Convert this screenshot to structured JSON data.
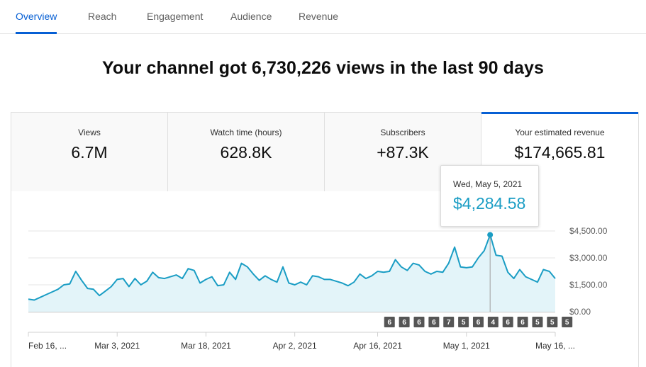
{
  "tabs": [
    {
      "label": "Overview",
      "active": true
    },
    {
      "label": "Reach"
    },
    {
      "label": "Engagement"
    },
    {
      "label": "Audience"
    },
    {
      "label": "Revenue"
    }
  ],
  "headline": "Your channel got 6,730,226 views in the last 90 days",
  "metrics": [
    {
      "label": "Views",
      "value": "6.7M"
    },
    {
      "label": "Watch time (hours)",
      "value": "628.8K"
    },
    {
      "label": "Subscribers",
      "value": "+87.3K"
    },
    {
      "label": "Your estimated revenue",
      "value": "$174,665.81",
      "active": true
    }
  ],
  "tooltip": {
    "date": "Wed, May 5, 2021",
    "value": "$4,284.58"
  },
  "colors": {
    "accent": "#065fd4",
    "line": "#1a9dc4",
    "fill": "#e3f4f9",
    "badge": "#555555"
  },
  "chart_data": {
    "type": "area",
    "series": [
      {
        "values": [
          700,
          650,
          800,
          950,
          1100,
          1250,
          1500,
          1550,
          2250,
          1750,
          1300,
          1250,
          900,
          1150,
          1400,
          1800,
          1850,
          1400,
          1850,
          1500,
          1700,
          2200,
          1900,
          1850,
          1950,
          2050,
          1850,
          2400,
          2300,
          1600,
          1800,
          1950,
          1450,
          1500,
          2200,
          1800,
          2700,
          2500,
          2100,
          1750,
          2000,
          1800,
          1650,
          2500,
          1600,
          1500,
          1650,
          1500,
          2000,
          1950,
          1800,
          1800,
          1700,
          1600,
          1450,
          1650,
          2100,
          1850,
          2000,
          2250,
          2200,
          2250,
          2900,
          2500,
          2300,
          2700,
          2600,
          2250,
          2100,
          2250,
          2200,
          2700,
          3600,
          2500,
          2450,
          2500,
          3000,
          3400,
          4284.58,
          3150,
          3100,
          2200,
          1850,
          2350,
          1950,
          1800,
          1650,
          2350,
          2250,
          1850
        ]
      }
    ],
    "ylim": [
      0,
      4500
    ],
    "yticks": [
      "$0.00",
      "$1,500.00",
      "$3,000.00",
      "$4,500.00"
    ],
    "ytick_values": [
      0,
      1500,
      3000,
      4500
    ],
    "xticks": [
      "Feb 16, ...",
      "Mar 3, 2021",
      "Mar 18, 2021",
      "Apr 2, 2021",
      "Apr 16, 2021",
      "May 1, 2021",
      "May 16, ..."
    ],
    "xtick_index": [
      0,
      15,
      30,
      45,
      59,
      74,
      89
    ],
    "highlight_index": 78,
    "badge_values": [
      "6",
      "6",
      "6",
      "6",
      "7",
      "5",
      "6",
      "4",
      "6",
      "6",
      "5",
      "5",
      "5"
    ],
    "badge_start_index": 61,
    "badge_step_index": 2.5,
    "grid": true
  }
}
